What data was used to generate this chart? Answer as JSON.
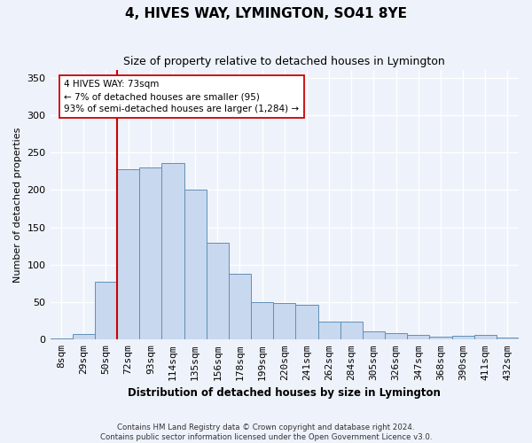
{
  "title": "4, HIVES WAY, LYMINGTON, SO41 8YE",
  "subtitle": "Size of property relative to detached houses in Lymington",
  "xlabel": "Distribution of detached houses by size in Lymington",
  "ylabel": "Number of detached properties",
  "categories": [
    "8sqm",
    "29sqm",
    "50sqm",
    "72sqm",
    "93sqm",
    "114sqm",
    "135sqm",
    "156sqm",
    "178sqm",
    "199sqm",
    "220sqm",
    "241sqm",
    "262sqm",
    "284sqm",
    "305sqm",
    "326sqm",
    "347sqm",
    "368sqm",
    "390sqm",
    "411sqm",
    "432sqm"
  ],
  "values": [
    2,
    8,
    77,
    228,
    230,
    236,
    200,
    130,
    88,
    50,
    49,
    46,
    24,
    24,
    11,
    9,
    6,
    4,
    5,
    6,
    3
  ],
  "bar_color": "#c8d8ee",
  "bar_edge_color": "#6090b8",
  "vline_color": "#cc0000",
  "vline_x": 2.5,
  "annotation_line1": "4 HIVES WAY: 73sqm",
  "annotation_line2": "← 7% of detached houses are smaller (95)",
  "annotation_line3": "93% of semi-detached houses are larger (1,284) →",
  "annotation_box_facecolor": "#ffffff",
  "annotation_box_edgecolor": "#cc0000",
  "footer1": "Contains HM Land Registry data © Crown copyright and database right 2024.",
  "footer2": "Contains public sector information licensed under the Open Government Licence v3.0.",
  "ylim_max": 360,
  "yticks": [
    0,
    50,
    100,
    150,
    200,
    250,
    300,
    350
  ],
  "bg_color": "#eef2fa",
  "grid_color": "#ffffff",
  "title_fontsize": 11,
  "subtitle_fontsize": 9
}
